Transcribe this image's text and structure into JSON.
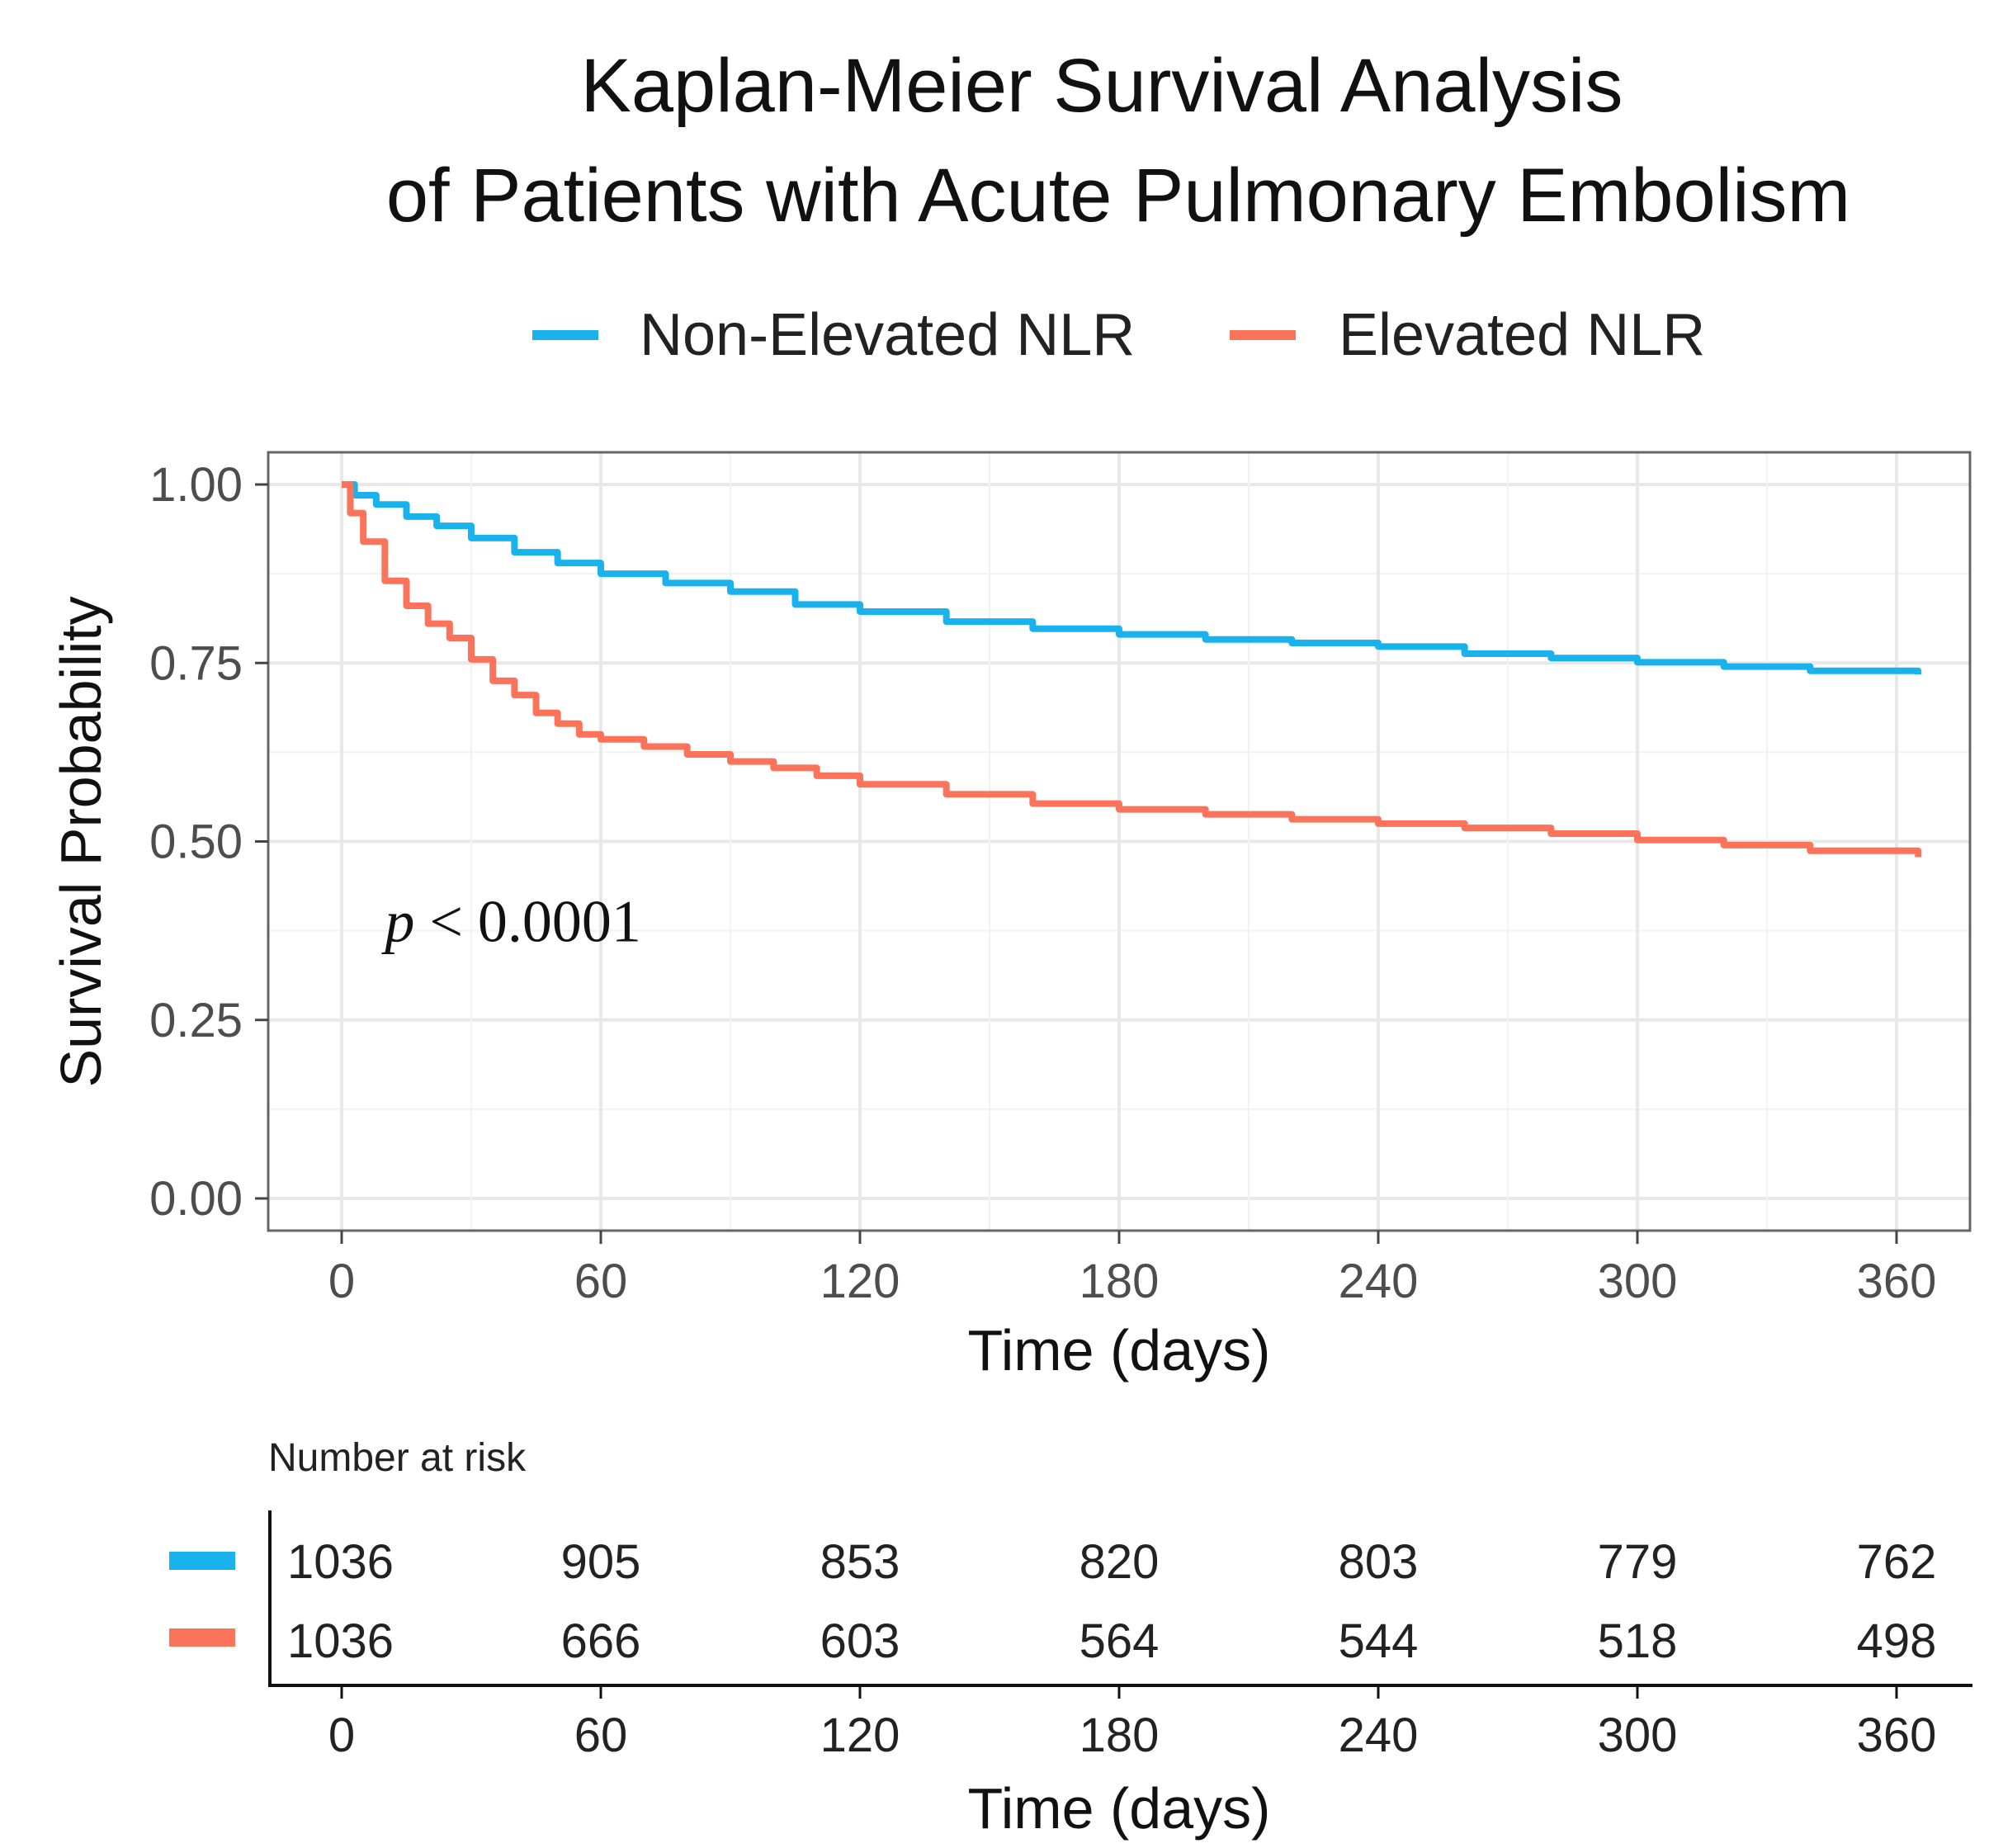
{
  "chart_data": {
    "type": "line",
    "subtype": "kaplan-meier",
    "title_lines": [
      "Kaplan-Meier Survival Analysis",
      "of Patients with Acute Pulmonary Embolism"
    ],
    "xlabel": "Time (days)",
    "ylabel": "Survival Probability",
    "xlim": [
      0,
      365
    ],
    "ylim": [
      0,
      1
    ],
    "x_ticks": [
      0,
      60,
      120,
      180,
      240,
      300,
      360
    ],
    "x_tick_labels": [
      "0",
      "60",
      "120",
      "180",
      "240",
      "300",
      "360"
    ],
    "y_ticks": [
      0,
      0.25,
      0.5,
      0.75,
      1.0
    ],
    "y_tick_labels": [
      "0.00",
      "0.25",
      "0.50",
      "0.75",
      "1.00"
    ],
    "grid": true,
    "legend_position": "top",
    "annotation": {
      "italic": "p",
      "rest": " < 0.0001",
      "x": 10,
      "y": 0.36
    },
    "series": [
      {
        "name": "Non-Elevated NLR",
        "color": "#1AB2EC",
        "points": [
          [
            0,
            1.0
          ],
          [
            3,
            0.985
          ],
          [
            8,
            0.972
          ],
          [
            15,
            0.955
          ],
          [
            22,
            0.942
          ],
          [
            30,
            0.925
          ],
          [
            40,
            0.905
          ],
          [
            50,
            0.89
          ],
          [
            60,
            0.875
          ],
          [
            75,
            0.862
          ],
          [
            90,
            0.85
          ],
          [
            105,
            0.832
          ],
          [
            120,
            0.822
          ],
          [
            140,
            0.808
          ],
          [
            160,
            0.798
          ],
          [
            180,
            0.79
          ],
          [
            200,
            0.783
          ],
          [
            220,
            0.778
          ],
          [
            240,
            0.773
          ],
          [
            260,
            0.763
          ],
          [
            280,
            0.757
          ],
          [
            300,
            0.751
          ],
          [
            320,
            0.745
          ],
          [
            340,
            0.739
          ],
          [
            365,
            0.734
          ]
        ]
      },
      {
        "name": "Elevated NLR",
        "color": "#FB735B",
        "points": [
          [
            0,
            1.0
          ],
          [
            2,
            0.96
          ],
          [
            5,
            0.92
          ],
          [
            10,
            0.865
          ],
          [
            15,
            0.83
          ],
          [
            20,
            0.805
          ],
          [
            25,
            0.785
          ],
          [
            30,
            0.755
          ],
          [
            35,
            0.725
          ],
          [
            40,
            0.705
          ],
          [
            45,
            0.68
          ],
          [
            50,
            0.665
          ],
          [
            55,
            0.65
          ],
          [
            60,
            0.643
          ],
          [
            70,
            0.633
          ],
          [
            80,
            0.622
          ],
          [
            90,
            0.612
          ],
          [
            100,
            0.603
          ],
          [
            110,
            0.592
          ],
          [
            120,
            0.58
          ],
          [
            140,
            0.566
          ],
          [
            160,
            0.553
          ],
          [
            180,
            0.545
          ],
          [
            200,
            0.538
          ],
          [
            220,
            0.531
          ],
          [
            240,
            0.525
          ],
          [
            260,
            0.519
          ],
          [
            280,
            0.511
          ],
          [
            300,
            0.502
          ],
          [
            320,
            0.495
          ],
          [
            340,
            0.487
          ],
          [
            365,
            0.478
          ]
        ]
      }
    ],
    "risk_table": {
      "title": "Number at risk",
      "xlabel": "Time (days)",
      "rows": [
        {
          "name": "Non-Elevated NLR",
          "color": "#1AB2EC",
          "values": [
            "1036",
            "905",
            "853",
            "820",
            "803",
            "779",
            "762"
          ]
        },
        {
          "name": "Elevated NLR",
          "color": "#FB735B",
          "values": [
            "1036",
            "666",
            "603",
            "564",
            "544",
            "518",
            "498"
          ]
        }
      ]
    }
  }
}
